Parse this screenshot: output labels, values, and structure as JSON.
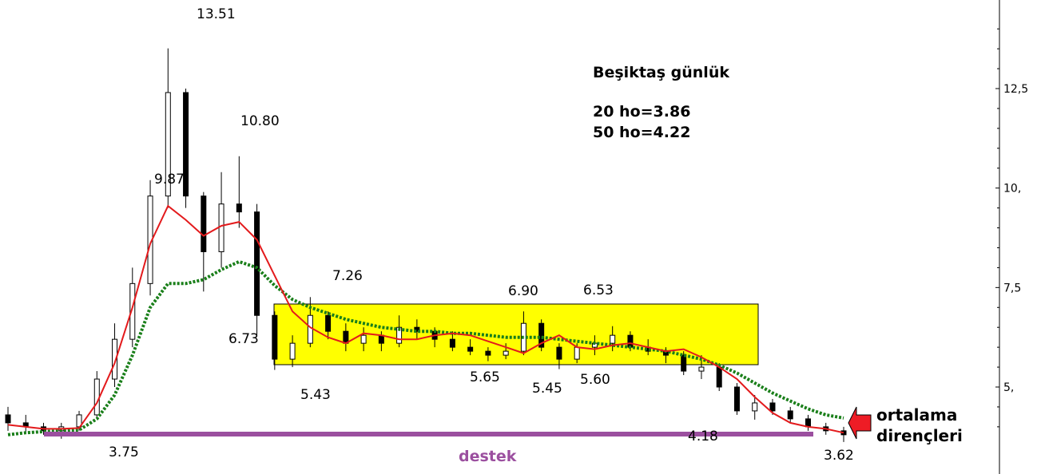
{
  "chart_data": {
    "type": "candlestick",
    "title": "Beşiktaş günlük",
    "ma_text": [
      "20 ho=3.86",
      "50 ho=4.22"
    ],
    "y_axis": {
      "side": "right",
      "ticks": [
        "12,5",
        "10,",
        "7,5",
        "5,"
      ],
      "tick_values": [
        12.5,
        10,
        7.5,
        5
      ],
      "range": [
        2.5,
        14.5
      ]
    },
    "series": [
      {
        "name": "20 ho",
        "color": "#e31a1c",
        "style": "line",
        "values": [
          4.05,
          4.0,
          3.95,
          3.95,
          3.97,
          4.6,
          5.6,
          7.0,
          8.6,
          9.55,
          9.2,
          8.8,
          9.05,
          9.15,
          8.7,
          7.8,
          6.9,
          6.5,
          6.25,
          6.1,
          6.35,
          6.3,
          6.2,
          6.2,
          6.3,
          6.35,
          6.3,
          6.15,
          6.0,
          5.85,
          6.1,
          6.3,
          6.0,
          5.95,
          6.05,
          6.1,
          6.0,
          5.9,
          5.95,
          5.75,
          5.5,
          5.2,
          4.75,
          4.35,
          4.1,
          4.0,
          3.95,
          3.85
        ]
      },
      {
        "name": "50 ho",
        "color": "#1a7f1a",
        "style": "dotted",
        "values": [
          3.8,
          3.85,
          3.88,
          3.9,
          3.92,
          4.2,
          4.8,
          5.8,
          7.0,
          7.6,
          7.6,
          7.7,
          7.95,
          8.15,
          8.0,
          7.55,
          7.2,
          7.0,
          6.85,
          6.7,
          6.6,
          6.5,
          6.45,
          6.4,
          6.4,
          6.35,
          6.35,
          6.3,
          6.25,
          6.25,
          6.25,
          6.2,
          6.15,
          6.1,
          6.05,
          6.0,
          5.95,
          5.9,
          5.8,
          5.7,
          5.55,
          5.35,
          5.1,
          4.85,
          4.65,
          4.45,
          4.3,
          4.22
        ]
      }
    ],
    "annotations": [
      {
        "text": "13.51",
        "value": 13.51
      },
      {
        "text": "10.80",
        "value": 10.8
      },
      {
        "text": "9.87",
        "value": 9.87
      },
      {
        "text": "7.26",
        "value": 7.26
      },
      {
        "text": "6.73",
        "value": 6.73
      },
      {
        "text": "6.90",
        "value": 6.9
      },
      {
        "text": "6.53",
        "value": 6.53
      },
      {
        "text": "5.43",
        "value": 5.43
      },
      {
        "text": "5.65",
        "value": 5.65
      },
      {
        "text": "5.45",
        "value": 5.45
      },
      {
        "text": "5.60",
        "value": 5.6
      },
      {
        "text": "4.18",
        "value": 4.18
      },
      {
        "text": "3.75",
        "value": 3.75
      },
      {
        "text": "3.62",
        "value": 3.62
      }
    ],
    "range_box": {
      "top": 7.1,
      "bottom": 5.5,
      "color": "#ffff00"
    },
    "support": {
      "label": "destek",
      "value": 3.75,
      "color": "#9b4f9f"
    },
    "resistance": {
      "label_lines": [
        "ortalama",
        "dirençleri"
      ],
      "arrow_color": "#ee1c25"
    },
    "candles": [
      [
        4.3,
        4.5,
        3.9,
        4.1
      ],
      [
        4.1,
        4.3,
        3.85,
        4.0
      ],
      [
        4.0,
        4.1,
        3.8,
        3.9
      ],
      [
        3.9,
        4.1,
        3.7,
        4.0
      ],
      [
        4.0,
        4.4,
        3.9,
        4.3
      ],
      [
        4.3,
        5.4,
        4.2,
        5.2
      ],
      [
        5.2,
        6.6,
        5.0,
        6.2
      ],
      [
        6.2,
        8.0,
        6.0,
        7.6
      ],
      [
        7.6,
        10.2,
        7.3,
        9.8
      ],
      [
        9.8,
        13.51,
        9.5,
        12.4
      ],
      [
        12.4,
        12.5,
        9.5,
        9.8
      ],
      [
        9.8,
        9.9,
        7.4,
        8.4
      ],
      [
        8.4,
        10.4,
        8.0,
        9.6
      ],
      [
        9.6,
        10.8,
        9.0,
        9.4
      ],
      [
        9.4,
        9.6,
        6.3,
        6.8
      ],
      [
        6.8,
        6.9,
        5.43,
        5.7
      ],
      [
        5.7,
        6.3,
        5.5,
        6.1
      ],
      [
        6.1,
        7.26,
        6.0,
        6.8
      ],
      [
        6.8,
        6.9,
        6.2,
        6.4
      ],
      [
        6.4,
        6.6,
        5.9,
        6.1
      ],
      [
        6.1,
        6.5,
        5.9,
        6.3
      ],
      [
        6.3,
        6.4,
        5.9,
        6.1
      ],
      [
        6.1,
        6.8,
        6.0,
        6.5
      ],
      [
        6.5,
        6.7,
        6.2,
        6.4
      ],
      [
        6.4,
        6.5,
        6.0,
        6.2
      ],
      [
        6.2,
        6.4,
        5.9,
        6.0
      ],
      [
        6.0,
        6.2,
        5.8,
        5.9
      ],
      [
        5.9,
        6.0,
        5.65,
        5.8
      ],
      [
        5.8,
        6.1,
        5.7,
        5.9
      ],
      [
        5.9,
        6.9,
        5.8,
        6.6
      ],
      [
        6.6,
        6.7,
        5.9,
        6.0
      ],
      [
        6.0,
        6.1,
        5.45,
        5.7
      ],
      [
        5.7,
        6.1,
        5.6,
        6.0
      ],
      [
        6.0,
        6.3,
        5.8,
        6.1
      ],
      [
        6.1,
        6.53,
        5.9,
        6.3
      ],
      [
        6.3,
        6.4,
        5.9,
        6.0
      ],
      [
        6.0,
        6.2,
        5.8,
        5.9
      ],
      [
        5.9,
        6.0,
        5.6,
        5.8
      ],
      [
        5.8,
        5.9,
        5.3,
        5.4
      ],
      [
        5.4,
        5.8,
        5.2,
        5.5
      ],
      [
        5.5,
        5.6,
        4.9,
        5.0
      ],
      [
        5.0,
        5.1,
        4.3,
        4.4
      ],
      [
        4.4,
        4.8,
        4.18,
        4.6
      ],
      [
        4.6,
        4.7,
        4.3,
        4.4
      ],
      [
        4.4,
        4.5,
        4.1,
        4.2
      ],
      [
        4.2,
        4.3,
        3.9,
        4.0
      ],
      [
        4.0,
        4.1,
        3.8,
        3.9
      ],
      [
        3.9,
        4.0,
        3.62,
        3.8
      ]
    ]
  }
}
